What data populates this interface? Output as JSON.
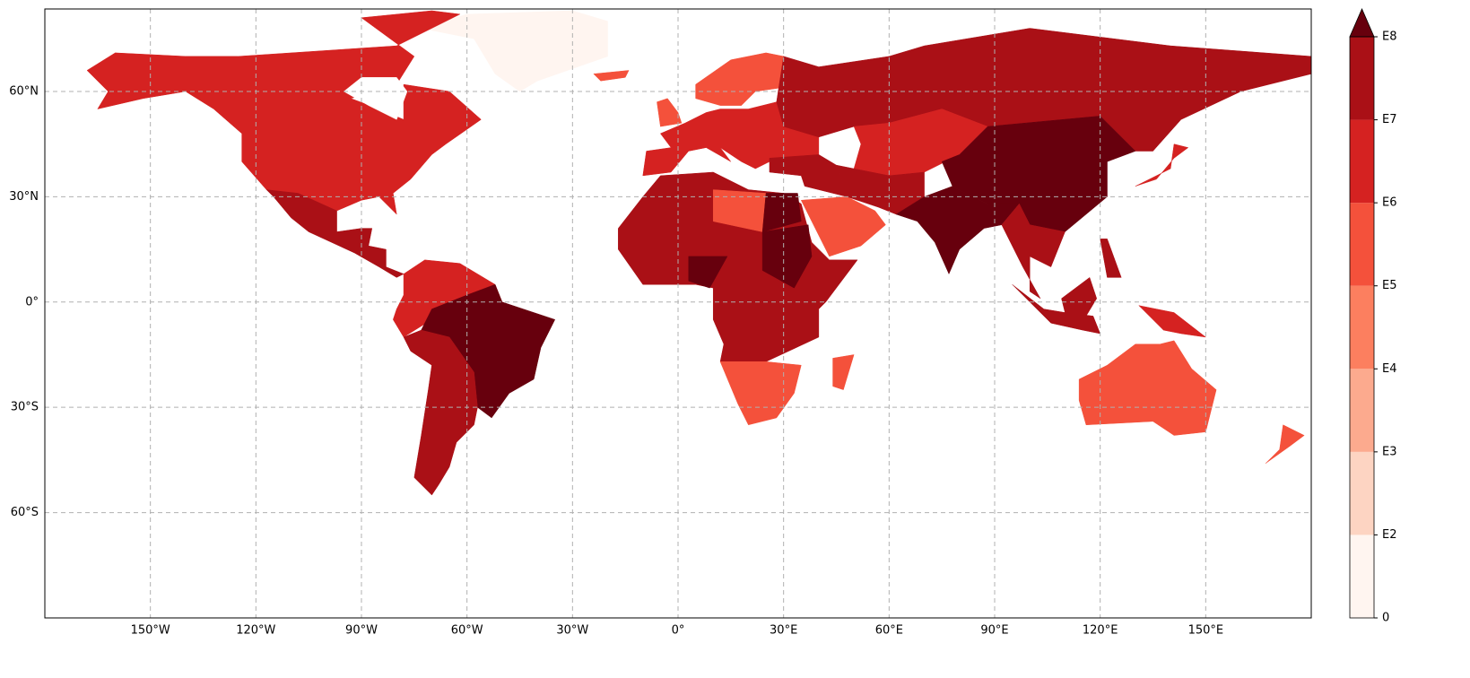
{
  "chart_data": {
    "type": "choropleth",
    "xlim": [
      -180,
      180
    ],
    "ylim": [
      -90,
      83.5
    ],
    "xticks": [
      {
        "value": -150,
        "label": "150°W"
      },
      {
        "value": -120,
        "label": "120°W"
      },
      {
        "value": -90,
        "label": "90°W"
      },
      {
        "value": -60,
        "label": "60°W"
      },
      {
        "value": -30,
        "label": "30°W"
      },
      {
        "value": 0,
        "label": "0°"
      },
      {
        "value": 30,
        "label": "30°E"
      },
      {
        "value": 60,
        "label": "60°E"
      },
      {
        "value": 90,
        "label": "90°E"
      },
      {
        "value": 120,
        "label": "120°E"
      },
      {
        "value": 150,
        "label": "150°E"
      }
    ],
    "yticks": [
      {
        "value": -60,
        "label": "60°S"
      },
      {
        "value": -30,
        "label": "30°S"
      },
      {
        "value": 0,
        "label": "0°"
      },
      {
        "value": 30,
        "label": "30°N"
      },
      {
        "value": 60,
        "label": "60°N"
      }
    ],
    "grid": true,
    "colorbar": {
      "levels": [
        0,
        {
          "value": 100,
          "label": "E2"
        },
        {
          "value": 1000,
          "label": "E3"
        },
        {
          "value": 10000,
          "label": "E4"
        },
        {
          "value": 100000,
          "label": "E5"
        },
        {
          "value": 1000000,
          "label": "E6"
        },
        {
          "value": 10000000,
          "label": "E7"
        },
        {
          "value": 100000000,
          "label": "E8"
        }
      ],
      "colors": [
        "#fff5f0",
        "#fdd4c2",
        "#fcaa8e",
        "#fc7f5f",
        "#f4513b",
        "#d52221",
        "#aa1016",
        "#67000d"
      ],
      "extend": "max"
    }
  }
}
